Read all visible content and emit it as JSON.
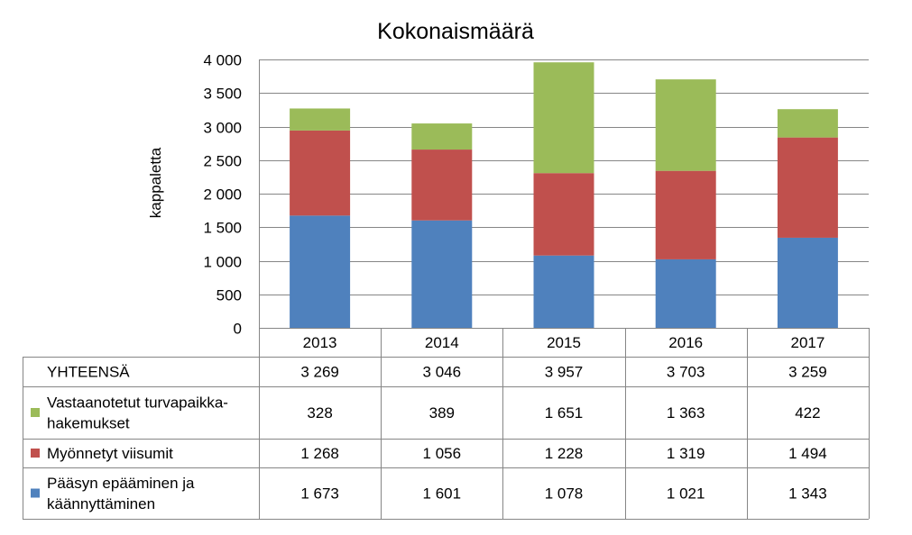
{
  "chart_data": {
    "type": "bar",
    "stacked": true,
    "title": "Kokonaismäärä",
    "ylabel": "kappaletta",
    "xlabel": "",
    "ylim": [
      0,
      4000
    ],
    "yticks": [
      0,
      500,
      1000,
      1500,
      2000,
      2500,
      3000,
      3500,
      4000
    ],
    "ytick_labels": [
      "0",
      "500",
      "1 000",
      "1 500",
      "2 000",
      "2 500",
      "3 000",
      "3 500",
      "4 000"
    ],
    "grid": true,
    "categories": [
      "2013",
      "2014",
      "2015",
      "2016",
      "2017"
    ],
    "total": {
      "label": "YHTEENSÄ",
      "values": [
        3269,
        3046,
        3957,
        3703,
        3259
      ],
      "display": [
        "3 269",
        "3 046",
        "3 957",
        "3 703",
        "3 259"
      ]
    },
    "series": [
      {
        "name": "Pääsyn epääminen ja käännyttäminen",
        "name_lines": [
          "Pääsyn epääminen ja",
          "käännyttäminen"
        ],
        "color": "#4F81BD",
        "values": [
          1673,
          1601,
          1078,
          1021,
          1343
        ],
        "display": [
          "1 673",
          "1 601",
          "1 078",
          "1 021",
          "1 343"
        ]
      },
      {
        "name": "Myönnetyt viisumit",
        "name_lines": [
          "Myönnetyt viisumit"
        ],
        "color": "#C0504D",
        "values": [
          1268,
          1056,
          1228,
          1319,
          1494
        ],
        "display": [
          "1 268",
          "1 056",
          "1 228",
          "1 319",
          "1 494"
        ]
      },
      {
        "name": "Vastaanotetut turvapaikka-hakemukset",
        "name_lines": [
          "Vastaanotetut turvapaikka-",
          "hakemukset"
        ],
        "color": "#9BBB59",
        "values": [
          328,
          389,
          1651,
          1363,
          422
        ],
        "display": [
          "328",
          "389",
          "1 651",
          "1 363",
          "422"
        ]
      }
    ],
    "table_row_order": [
      "total",
      2,
      1,
      0
    ]
  }
}
